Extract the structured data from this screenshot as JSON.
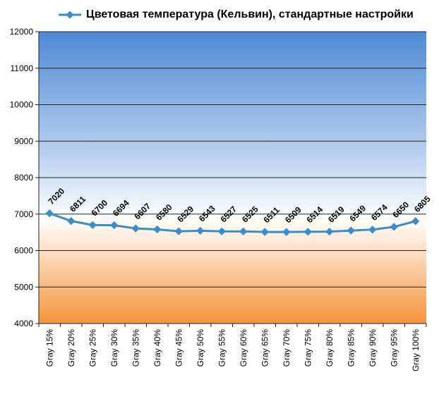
{
  "chart_data": {
    "type": "line",
    "title": "",
    "xlabel": "",
    "ylabel": "",
    "categories": [
      "Gray 15%",
      "Gray 20%",
      "Gray 25%",
      "Gray 30%",
      "Gray 35%",
      "Gray 40%",
      "Gray 45%",
      "Gray 50%",
      "Gray 55%",
      "Gray 60%",
      "Gray 65%",
      "Gray 70%",
      "Gray 75%",
      "Gray 80%",
      "Gray 85%",
      "Gray 90%",
      "Gray 95%",
      "Gray 100%"
    ],
    "series": [
      {
        "name": "Цветовая температура (Кельвин), стандартные настройки",
        "values": [
          7020,
          6811,
          6700,
          6694,
          6607,
          6580,
          6529,
          6543,
          6527,
          6525,
          6511,
          6509,
          6514,
          6519,
          6549,
          6574,
          6650,
          6805
        ],
        "color": "#3a8ec8"
      }
    ],
    "ylim": [
      4000,
      12000
    ],
    "ytick_step": 1000,
    "grid": true,
    "legend_position": "top",
    "data_labels": true,
    "background_gradient": [
      "#4f8ad6",
      "#ffffff",
      "#f5933a"
    ]
  }
}
